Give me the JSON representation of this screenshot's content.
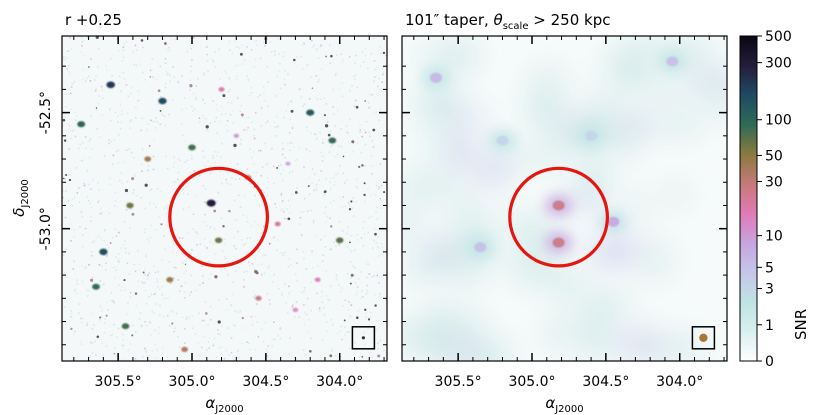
{
  "panels": [
    {
      "title": "r +0.25",
      "style": "point-sources",
      "sources": [
        {
          "ra": 304.87,
          "dec": -52.89,
          "snr": 300
        },
        {
          "ra": 304.82,
          "dec": -53.05,
          "snr": 60
        },
        {
          "ra": 304.42,
          "dec": -52.98,
          "snr": 20
        },
        {
          "ra": 305.55,
          "dec": -52.38,
          "snr": 200
        },
        {
          "ra": 305.2,
          "dec": -52.45,
          "snr": 150
        },
        {
          "ra": 304.2,
          "dec": -52.5,
          "snr": 120
        },
        {
          "ra": 305.0,
          "dec": -52.65,
          "snr": 80
        },
        {
          "ra": 305.3,
          "dec": -52.7,
          "snr": 40
        },
        {
          "ra": 304.05,
          "dec": -52.62,
          "snr": 90
        },
        {
          "ra": 305.42,
          "dec": -52.9,
          "snr": 60
        },
        {
          "ra": 304.62,
          "dec": -52.78,
          "snr": 30
        },
        {
          "ra": 305.6,
          "dec": -53.1,
          "snr": 150
        },
        {
          "ra": 304.0,
          "dec": -53.05,
          "snr": 70
        },
        {
          "ra": 305.15,
          "dec": -53.22,
          "snr": 45
        },
        {
          "ra": 304.55,
          "dec": -53.3,
          "snr": 25
        },
        {
          "ra": 305.45,
          "dec": -53.42,
          "snr": 80
        },
        {
          "ra": 304.3,
          "dec": -53.35,
          "snr": 12
        },
        {
          "ra": 305.05,
          "dec": -53.52,
          "snr": 35
        },
        {
          "ra": 304.8,
          "dec": -52.4,
          "snr": 18
        },
        {
          "ra": 304.35,
          "dec": -52.72,
          "snr": 8
        },
        {
          "ra": 305.75,
          "dec": -52.55,
          "snr": 100
        },
        {
          "ra": 305.65,
          "dec": -53.25,
          "snr": 90
        },
        {
          "ra": 304.15,
          "dec": -53.22,
          "snr": 15
        },
        {
          "ra": 304.7,
          "dec": -52.6,
          "snr": 10
        }
      ]
    },
    {
      "title": "101″ taper, θ_scale > 250 kpc",
      "title_parts": {
        "lead": "101″ taper, ",
        "theta": "θ",
        "sub": "scale",
        "tail": " > 250 kpc"
      },
      "style": "diffuse",
      "sources": [
        {
          "ra": 304.82,
          "dec": -52.9,
          "snr": 25
        },
        {
          "ra": 304.82,
          "dec": -53.06,
          "snr": 25
        },
        {
          "ra": 304.45,
          "dec": -52.97,
          "snr": 8
        },
        {
          "ra": 305.65,
          "dec": -52.35,
          "snr": 6
        },
        {
          "ra": 304.05,
          "dec": -52.28,
          "snr": 5
        },
        {
          "ra": 305.35,
          "dec": -53.08,
          "snr": 5
        },
        {
          "ra": 304.6,
          "dec": -52.6,
          "snr": 3
        },
        {
          "ra": 305.2,
          "dec": -52.62,
          "snr": 3
        }
      ]
    }
  ],
  "circle": {
    "ra": 304.82,
    "dec": -52.95,
    "radius_deg": 0.33,
    "color": "#e8150e"
  },
  "beam_box": {
    "ra": 303.84,
    "dec": -53.47
  },
  "xaxis": {
    "label_main": "α",
    "label_sub": "J2000",
    "ticks": [
      {
        "value": 305.5,
        "label": "305.5°"
      },
      {
        "value": 305.0,
        "label": "305.0°"
      },
      {
        "value": 304.5,
        "label": "304.5°"
      },
      {
        "value": 304.0,
        "label": "304.0°"
      }
    ],
    "range": [
      305.88,
      303.68
    ]
  },
  "yaxis": {
    "label_main": "δ",
    "label_sub": "J2000",
    "ticks": [
      {
        "value": -52.5,
        "label": "-52.5°"
      },
      {
        "value": -53.0,
        "label": "-53.0°"
      }
    ],
    "range": [
      -53.57,
      -52.17
    ]
  },
  "colorbar": {
    "label": "SNR",
    "ticks": [
      {
        "value": 500,
        "label": "500"
      },
      {
        "value": 300,
        "label": "300"
      },
      {
        "value": 100,
        "label": "100"
      },
      {
        "value": 50,
        "label": "50"
      },
      {
        "value": 30,
        "label": "30"
      },
      {
        "value": 10,
        "label": "10"
      },
      {
        "value": 5,
        "label": "5"
      },
      {
        "value": 3,
        "label": "3"
      },
      {
        "value": 1,
        "label": "1"
      },
      {
        "value": 0,
        "label": "0"
      }
    ],
    "stops": [
      "#ffffff",
      "#d9efee",
      "#bfe3e4",
      "#c6c6ea",
      "#c7a4df",
      "#e07ab7",
      "#c57a78",
      "#8a7a3e",
      "#2f6a55",
      "#1f4a63",
      "#241c3c",
      "#0b0712"
    ]
  }
}
